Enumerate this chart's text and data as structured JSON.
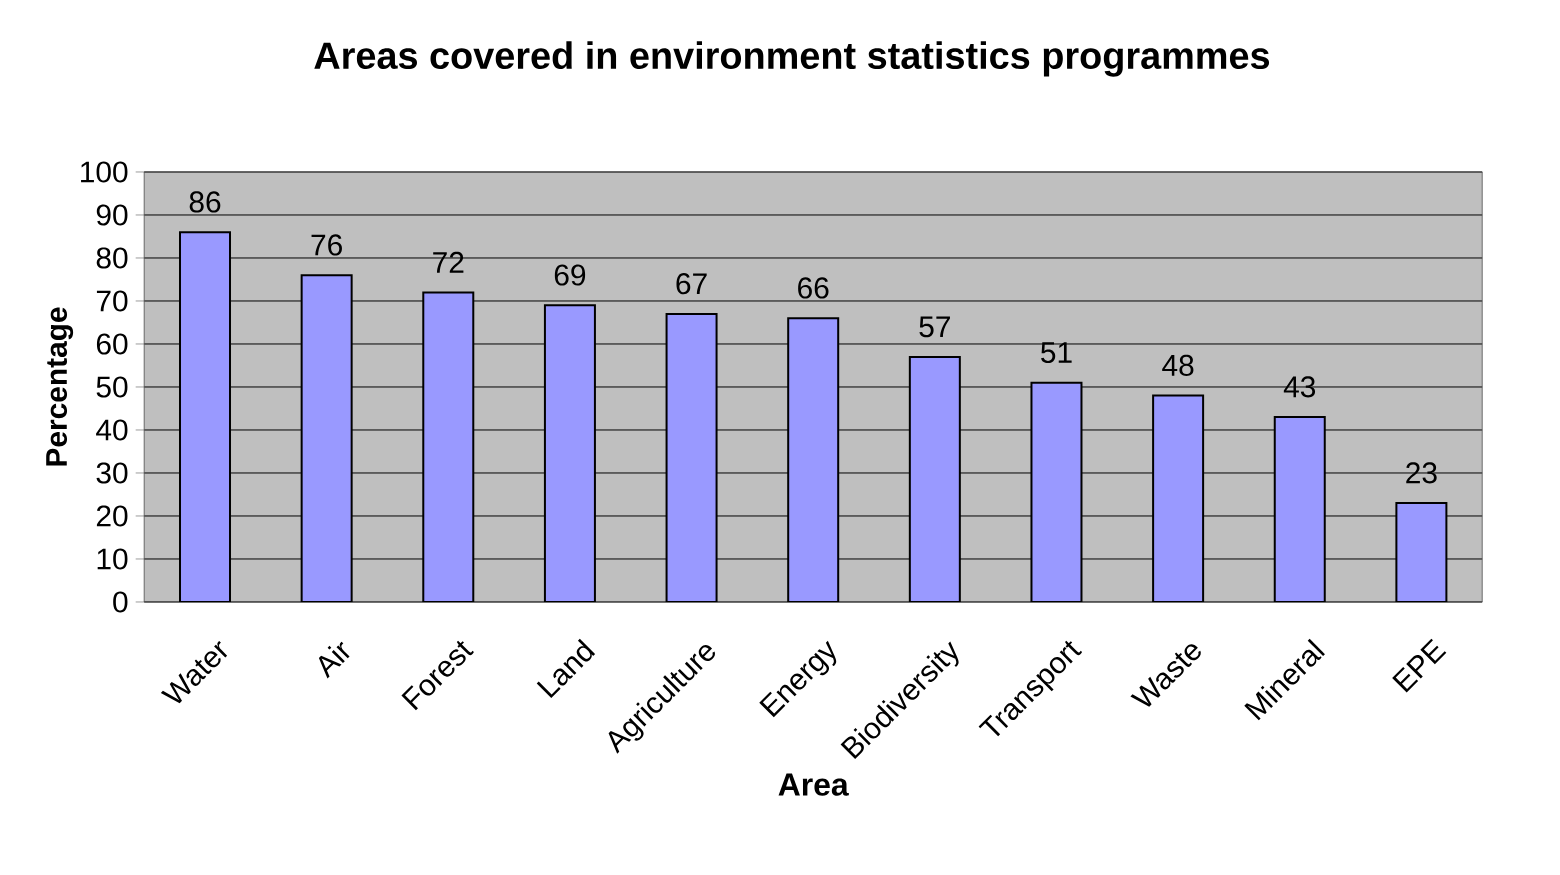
{
  "chart_data": {
    "type": "bar",
    "title": "Areas covered in environment statistics programmes",
    "xlabel": "Area",
    "ylabel": "Percentage",
    "categories": [
      "Water",
      "Air",
      "Forest",
      "Land",
      "Agriculture",
      "Energy",
      "Biodiversity",
      "Transport",
      "Waste",
      "Mineral",
      "EPE"
    ],
    "values": [
      86,
      76,
      72,
      69,
      67,
      66,
      57,
      51,
      48,
      43,
      23
    ],
    "color": "#9999ff",
    "ylim": [
      0,
      100
    ],
    "yticks": [
      0,
      10,
      20,
      30,
      40,
      50,
      60,
      70,
      80,
      90,
      100
    ],
    "grid": "y",
    "data_labels": true
  }
}
